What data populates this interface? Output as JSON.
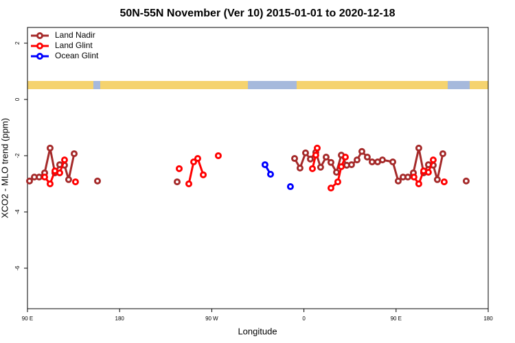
{
  "chart_data": {
    "type": "line",
    "title": "50N-55N November (Ver 10)   2015-01-01 to 2020-12-18",
    "x_label": "Longitude",
    "y_label": "XCO2 - MLO trend (ppm)",
    "xlim": [
      90,
      540
    ],
    "ylim": [
      -7.44,
      2.56
    ],
    "xticks": [
      {
        "value": 90,
        "label": "90 E"
      },
      180,
      {
        "value": 270,
        "label": "90 W"
      },
      {
        "value": 360,
        "label": "0"
      },
      {
        "value": 450,
        "label": "90 E"
      },
      {
        "value": 540,
        "label": "180"
      }
    ],
    "yticks": [
      2,
      0,
      -2,
      -4,
      -6
    ],
    "legend": "upper left",
    "series": [
      {
        "name": "Land Nadir",
        "color": "#a52a2a",
        "x": [
          92.0,
          96.7,
          101.4,
          106.8,
          112.1,
          116.8,
          121.5,
          126.2,
          130.2,
          135.6,
          null,
          158.4,
          null,
          236.2,
          null,
          350.9,
          356.2,
          361.6,
          366.3,
          371.6,
          376.3,
          381.7,
          386.4,
          391.8,
          396.5,
          401.8,
          406.5,
          411.9,
          416.6,
          421.9,
          426.6,
          432.0,
          436.7,
          446.8,
          452.1,
          456.8,
          461.5,
          466.9,
          472.2,
          476.9,
          481.6,
          486.3,
          490.3,
          495.7,
          null,
          518.5
        ],
        "values": [
          -2.9,
          -2.76,
          -2.76,
          -2.61,
          -1.73,
          -2.61,
          -2.32,
          -2.34,
          -2.85,
          -1.93,
          null,
          -2.9,
          null,
          -2.93,
          null,
          -2.1,
          -2.44,
          -1.9,
          -2.12,
          -1.88,
          -2.41,
          -2.05,
          -2.24,
          -2.59,
          -1.98,
          -2.34,
          -2.32,
          -2.15,
          -1.85,
          -2.05,
          -2.22,
          -2.22,
          -2.15,
          -2.22,
          -2.9,
          -2.76,
          -2.76,
          -2.61,
          -1.73,
          -2.61,
          -2.32,
          -2.34,
          -2.85,
          -1.93,
          null,
          -2.9
        ]
      },
      {
        "name": "Land Glint",
        "color": "#ff0000",
        "x": [
          106.8,
          112.1,
          116.8,
          121.5,
          126.2,
          null,
          136.9,
          null,
          238.2,
          null,
          247.6,
          252.3,
          256.3,
          261.7,
          null,
          276.4,
          null,
          368.3,
          371.6,
          373.0,
          null,
          386.4,
          393.1,
          396.5,
          400.5,
          null,
          467.5,
          472.2,
          476.9,
          481.6,
          486.3,
          null,
          497.0
        ],
        "values": [
          -2.76,
          -3.0,
          -2.54,
          -2.61,
          -2.15,
          null,
          -2.93,
          null,
          -2.46,
          null,
          -3.0,
          -2.22,
          -2.1,
          -2.68,
          null,
          -2.0,
          null,
          -2.46,
          -1.98,
          -1.73,
          null,
          -3.15,
          -2.93,
          -2.39,
          -2.05,
          null,
          -2.76,
          -3.0,
          -2.54,
          -2.59,
          -2.15,
          null,
          -2.93
        ]
      },
      {
        "name": "Ocean Glint",
        "color": "#0000ff",
        "x": [
          322.0,
          327.4,
          null,
          346.8
        ],
        "values": [
          -2.32,
          -2.66,
          null,
          -3.1
        ]
      }
    ]
  }
}
